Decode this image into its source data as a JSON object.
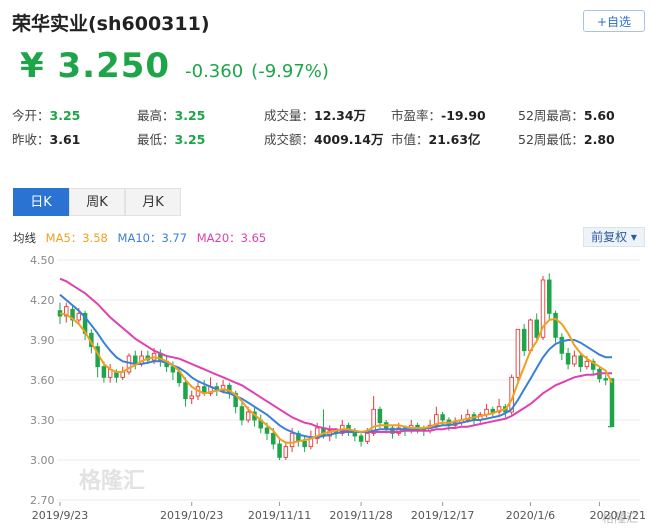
{
  "header": {
    "title": "荣华实业(sh600311)",
    "add_button": "+自选"
  },
  "quote": {
    "price": "¥ 3.250",
    "change": "-0.360",
    "change_pct": "(-9.97%)"
  },
  "stats": [
    {
      "label": "今开：",
      "value": "3.25",
      "color": "green"
    },
    {
      "label": "最高：",
      "value": "3.25",
      "color": "green"
    },
    {
      "label": "成交量：",
      "value": "12.34万",
      "color": "black"
    },
    {
      "label": "市盈率：",
      "value": "-19.90",
      "color": "black"
    },
    {
      "label": "52周最高：",
      "value": "5.60",
      "color": "black"
    },
    {
      "label": "昨收：",
      "value": "3.61",
      "color": "black"
    },
    {
      "label": "最低：",
      "value": "3.25",
      "color": "green"
    },
    {
      "label": "成交额：",
      "value": "4009.14万",
      "color": "black"
    },
    {
      "label": "市值：",
      "value": "21.63亿",
      "color": "black"
    },
    {
      "label": "52周最低：",
      "value": "2.80",
      "color": "black"
    }
  ],
  "tabs": [
    {
      "label": "日K",
      "active": true
    },
    {
      "label": "周K",
      "active": false
    },
    {
      "label": "月K",
      "active": false
    }
  ],
  "ma": {
    "label": "均线",
    "ma5": "MA5：3.58",
    "ma10": "MA10：3.77",
    "ma20": "MA20：3.65",
    "ma5_color": "#f0a020",
    "ma10_color": "#3a7fd9",
    "ma20_color": "#e040b0"
  },
  "adjust_button": "前复权 ▾",
  "watermark": "格隆汇",
  "chart_data": {
    "type": "candlestick",
    "y_ticks": [
      "4.50",
      "4.20",
      "3.90",
      "3.60",
      "3.30",
      "3.00",
      "2.70"
    ],
    "ylim": [
      2.7,
      4.5
    ],
    "x_ticks": [
      "2019/9/23",
      "2019/10/23",
      "2019/11/11",
      "2019/11/28",
      "2019/12/17",
      "2020/1/6",
      "2020/1/21"
    ],
    "up_color": "#e23a3a",
    "down_color": "#1ea54a",
    "candles": [
      [
        4.12,
        4.08,
        4.18,
        4.02
      ],
      [
        4.08,
        4.15,
        4.18,
        4.03
      ],
      [
        4.13,
        4.05,
        4.16,
        4.0
      ],
      [
        4.05,
        4.1,
        4.14,
        4.02
      ],
      [
        4.1,
        3.95,
        4.12,
        3.9
      ],
      [
        3.95,
        3.85,
        3.98,
        3.8
      ],
      [
        3.85,
        3.7,
        3.88,
        3.62
      ],
      [
        3.7,
        3.62,
        3.74,
        3.58
      ],
      [
        3.62,
        3.68,
        3.72,
        3.58
      ],
      [
        3.66,
        3.62,
        3.68,
        3.58
      ],
      [
        3.62,
        3.66,
        3.7,
        3.6
      ],
      [
        3.66,
        3.78,
        3.8,
        3.64
      ],
      [
        3.78,
        3.72,
        3.82,
        3.68
      ],
      [
        3.72,
        3.78,
        3.82,
        3.7
      ],
      [
        3.78,
        3.75,
        3.82,
        3.72
      ],
      [
        3.75,
        3.8,
        3.84,
        3.72
      ],
      [
        3.8,
        3.74,
        3.83,
        3.7
      ],
      [
        3.74,
        3.7,
        3.78,
        3.66
      ],
      [
        3.7,
        3.66,
        3.74,
        3.6
      ],
      [
        3.66,
        3.58,
        3.7,
        3.55
      ],
      [
        3.58,
        3.46,
        3.62,
        3.4
      ],
      [
        3.46,
        3.48,
        3.52,
        3.42
      ],
      [
        3.48,
        3.55,
        3.58,
        3.45
      ],
      [
        3.55,
        3.5,
        3.6,
        3.48
      ],
      [
        3.5,
        3.55,
        3.62,
        3.48
      ],
      [
        3.55,
        3.52,
        3.58,
        3.48
      ],
      [
        3.52,
        3.56,
        3.6,
        3.5
      ],
      [
        3.56,
        3.5,
        3.58,
        3.46
      ],
      [
        3.5,
        3.4,
        3.52,
        3.35
      ],
      [
        3.4,
        3.3,
        3.44,
        3.26
      ],
      [
        3.3,
        3.36,
        3.4,
        3.28
      ],
      [
        3.36,
        3.3,
        3.4,
        3.25
      ],
      [
        3.3,
        3.24,
        3.34,
        3.2
      ],
      [
        3.24,
        3.2,
        3.28,
        3.15
      ],
      [
        3.2,
        3.12,
        3.24,
        3.08
      ],
      [
        3.12,
        3.02,
        3.16,
        3.0
      ],
      [
        3.02,
        3.1,
        3.14,
        3.0
      ],
      [
        3.1,
        3.2,
        3.24,
        3.06
      ],
      [
        3.2,
        3.14,
        3.22,
        3.1
      ],
      [
        3.14,
        3.1,
        3.18,
        3.06
      ],
      [
        3.1,
        3.16,
        3.22,
        3.08
      ],
      [
        3.16,
        3.24,
        3.28,
        3.12
      ],
      [
        3.24,
        3.18,
        3.38,
        3.16
      ],
      [
        3.18,
        3.22,
        3.26,
        3.14
      ],
      [
        3.22,
        3.2,
        3.24,
        3.16
      ],
      [
        3.2,
        3.26,
        3.3,
        3.18
      ],
      [
        3.26,
        3.22,
        3.28,
        3.18
      ],
      [
        3.22,
        3.18,
        3.24,
        3.14
      ],
      [
        3.18,
        3.14,
        3.2,
        3.1
      ],
      [
        3.14,
        3.2,
        3.24,
        3.12
      ],
      [
        3.2,
        3.38,
        3.48,
        3.18
      ],
      [
        3.38,
        3.28,
        3.4,
        3.24
      ],
      [
        3.28,
        3.24,
        3.3,
        3.2
      ],
      [
        3.24,
        3.2,
        3.26,
        3.16
      ],
      [
        3.2,
        3.24,
        3.28,
        3.18
      ],
      [
        3.24,
        3.22,
        3.26,
        3.18
      ],
      [
        3.22,
        3.26,
        3.3,
        3.2
      ],
      [
        3.26,
        3.24,
        3.28,
        3.2
      ],
      [
        3.24,
        3.22,
        3.26,
        3.18
      ],
      [
        3.22,
        3.26,
        3.3,
        3.2
      ],
      [
        3.26,
        3.34,
        3.4,
        3.24
      ],
      [
        3.34,
        3.3,
        3.36,
        3.26
      ],
      [
        3.3,
        3.26,
        3.32,
        3.22
      ],
      [
        3.26,
        3.28,
        3.32,
        3.24
      ],
      [
        3.28,
        3.3,
        3.34,
        3.26
      ],
      [
        3.3,
        3.34,
        3.38,
        3.28
      ],
      [
        3.34,
        3.3,
        3.36,
        3.26
      ],
      [
        3.3,
        3.34,
        3.36,
        3.28
      ],
      [
        3.34,
        3.38,
        3.42,
        3.32
      ],
      [
        3.38,
        3.36,
        3.4,
        3.32
      ],
      [
        3.36,
        3.4,
        3.46,
        3.34
      ],
      [
        3.4,
        3.36,
        3.42,
        3.32
      ],
      [
        3.36,
        3.62,
        3.64,
        3.34
      ],
      [
        3.62,
        3.98,
        3.98,
        3.58
      ],
      [
        3.98,
        3.82,
        4.02,
        3.78
      ],
      [
        3.82,
        4.05,
        4.06,
        3.8
      ],
      [
        4.05,
        3.92,
        4.1,
        3.88
      ],
      [
        3.92,
        4.35,
        4.38,
        3.9
      ],
      [
        4.35,
        4.1,
        4.4,
        4.05
      ],
      [
        4.1,
        3.92,
        4.12,
        3.88
      ],
      [
        3.92,
        3.8,
        3.95,
        3.75
      ],
      [
        3.8,
        3.72,
        3.84,
        3.68
      ],
      [
        3.72,
        3.78,
        3.82,
        3.7
      ],
      [
        3.78,
        3.7,
        3.8,
        3.66
      ],
      [
        3.7,
        3.74,
        3.78,
        3.68
      ],
      [
        3.74,
        3.68,
        3.76,
        3.64
      ],
      [
        3.68,
        3.61,
        3.7,
        3.58
      ],
      [
        3.61,
        3.6,
        3.64,
        3.56
      ],
      [
        3.61,
        3.25,
        3.61,
        3.25
      ]
    ],
    "ma5": [
      4.1,
      4.09,
      4.06,
      4.02,
      3.96,
      3.88,
      3.8,
      3.72,
      3.68,
      3.66,
      3.66,
      3.69,
      3.71,
      3.74,
      3.76,
      3.77,
      3.76,
      3.74,
      3.71,
      3.67,
      3.6,
      3.55,
      3.52,
      3.5,
      3.51,
      3.52,
      3.53,
      3.52,
      3.49,
      3.44,
      3.38,
      3.34,
      3.3,
      3.26,
      3.22,
      3.16,
      3.13,
      3.13,
      3.14,
      3.15,
      3.16,
      3.18,
      3.2,
      3.21,
      3.22,
      3.23,
      3.23,
      3.22,
      3.21,
      3.22,
      3.25,
      3.26,
      3.26,
      3.26,
      3.26,
      3.25,
      3.24,
      3.24,
      3.24,
      3.25,
      3.27,
      3.28,
      3.28,
      3.29,
      3.3,
      3.31,
      3.32,
      3.33,
      3.34,
      3.35,
      3.37,
      3.38,
      3.45,
      3.58,
      3.7,
      3.82,
      3.89,
      4.0,
      4.05,
      4.06,
      4.02,
      3.95,
      3.86,
      3.8,
      3.76,
      3.73,
      3.7,
      3.67,
      3.58
    ],
    "ma10": [
      4.24,
      4.2,
      4.16,
      4.12,
      4.07,
      4.01,
      3.95,
      3.88,
      3.82,
      3.77,
      3.74,
      3.73,
      3.72,
      3.72,
      3.73,
      3.74,
      3.74,
      3.73,
      3.71,
      3.69,
      3.66,
      3.62,
      3.59,
      3.57,
      3.55,
      3.53,
      3.51,
      3.5,
      3.48,
      3.46,
      3.43,
      3.4,
      3.37,
      3.34,
      3.3,
      3.26,
      3.23,
      3.21,
      3.19,
      3.18,
      3.17,
      3.17,
      3.18,
      3.19,
      3.2,
      3.21,
      3.21,
      3.21,
      3.21,
      3.21,
      3.22,
      3.23,
      3.23,
      3.23,
      3.23,
      3.23,
      3.23,
      3.23,
      3.24,
      3.24,
      3.25,
      3.26,
      3.26,
      3.27,
      3.28,
      3.29,
      3.3,
      3.3,
      3.31,
      3.32,
      3.33,
      3.35,
      3.38,
      3.45,
      3.53,
      3.61,
      3.69,
      3.77,
      3.83,
      3.87,
      3.89,
      3.9,
      3.9,
      3.88,
      3.85,
      3.82,
      3.79,
      3.77,
      3.77
    ],
    "ma20": [
      4.36,
      4.34,
      4.31,
      4.28,
      4.25,
      4.21,
      4.17,
      4.12,
      4.07,
      4.03,
      3.99,
      3.95,
      3.91,
      3.88,
      3.85,
      3.82,
      3.8,
      3.78,
      3.77,
      3.76,
      3.74,
      3.72,
      3.7,
      3.68,
      3.66,
      3.64,
      3.62,
      3.6,
      3.58,
      3.56,
      3.53,
      3.5,
      3.47,
      3.44,
      3.41,
      3.38,
      3.35,
      3.32,
      3.3,
      3.28,
      3.27,
      3.25,
      3.24,
      3.23,
      3.23,
      3.22,
      3.22,
      3.22,
      3.21,
      3.21,
      3.21,
      3.21,
      3.21,
      3.21,
      3.21,
      3.22,
      3.22,
      3.22,
      3.22,
      3.22,
      3.23,
      3.23,
      3.24,
      3.24,
      3.25,
      3.25,
      3.26,
      3.27,
      3.28,
      3.29,
      3.3,
      3.31,
      3.33,
      3.36,
      3.39,
      3.42,
      3.46,
      3.5,
      3.53,
      3.56,
      3.58,
      3.6,
      3.62,
      3.63,
      3.64,
      3.64,
      3.65,
      3.65,
      3.65
    ]
  }
}
